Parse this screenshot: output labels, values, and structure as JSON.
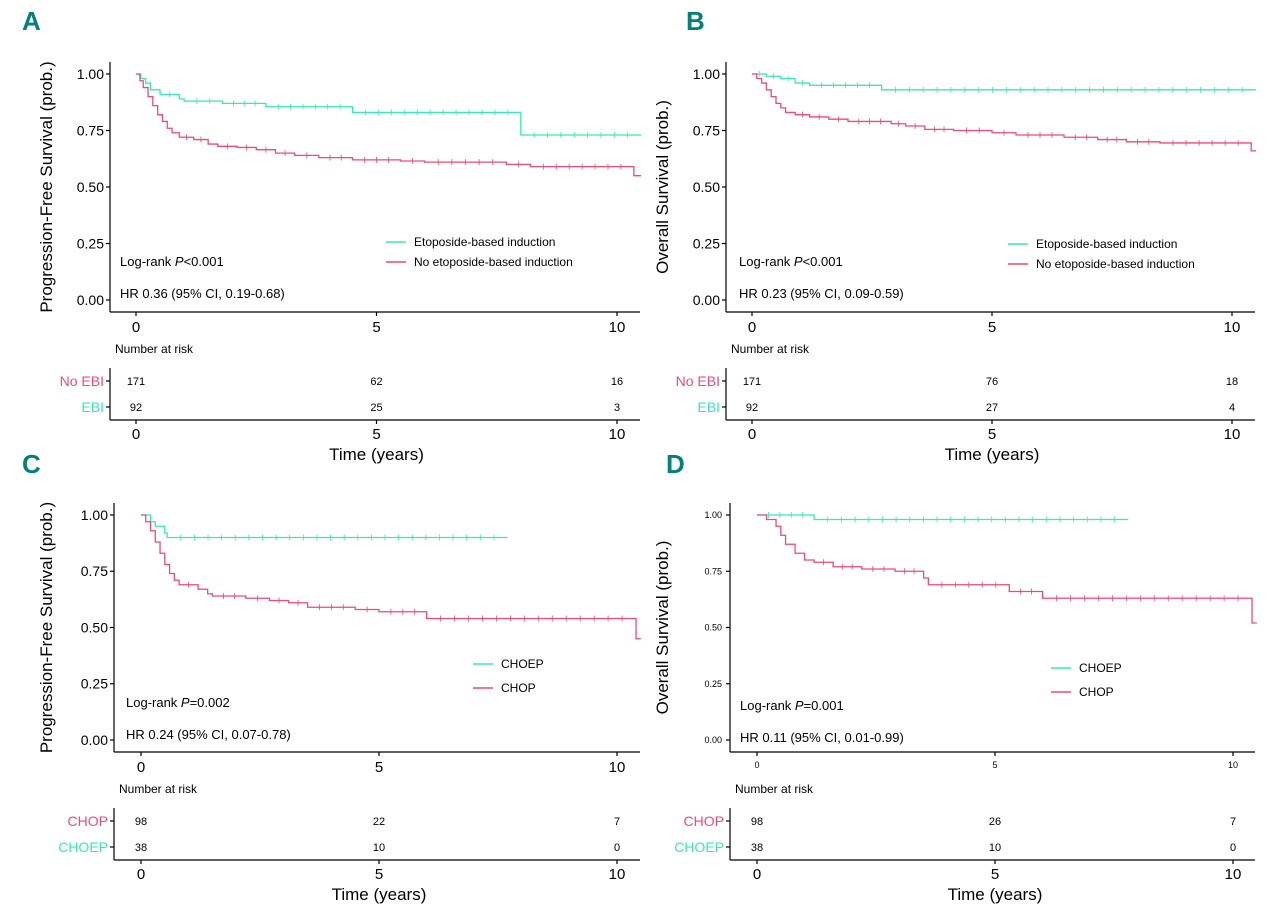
{
  "colors": {
    "teal": "#34eab5",
    "pink": "#eb4a7a",
    "label": "#00827a"
  },
  "chart_data": [
    {
      "panel": "A",
      "type": "line",
      "ylabel": "Progression-Free Survival (prob.)",
      "xlabel": "Time (years)",
      "ylim": [
        0,
        1
      ],
      "xlim": [
        0,
        10.5
      ],
      "y_ticks": [
        "0.00",
        "0.25",
        "0.50",
        "0.75",
        "1.00"
      ],
      "x_ticks": [
        "0",
        "5",
        "10"
      ],
      "logrank_prefix": "Log-rank ",
      "logrank_p": "P",
      "logrank_value": "<0.001",
      "hr_text": "HR 0.36 (95% CI, 0.19-0.68)",
      "series": [
        {
          "name": "Etoposide-based induction",
          "color": "#34eab5",
          "steps": [
            [
              0,
              1.0
            ],
            [
              0.1,
              0.98
            ],
            [
              0.2,
              0.96
            ],
            [
              0.3,
              0.93
            ],
            [
              0.5,
              0.91
            ],
            [
              0.9,
              0.89
            ],
            [
              1.0,
              0.88
            ],
            [
              1.8,
              0.87
            ],
            [
              2.7,
              0.855
            ],
            [
              4.5,
              0.83
            ],
            [
              8.0,
              0.73
            ],
            [
              10.5,
              0.73
            ]
          ]
        },
        {
          "name": "No etoposide-based induction",
          "color": "#eb4a7a",
          "steps": [
            [
              0,
              1.0
            ],
            [
              0.08,
              0.97
            ],
            [
              0.15,
              0.94
            ],
            [
              0.25,
              0.9
            ],
            [
              0.35,
              0.86
            ],
            [
              0.45,
              0.82
            ],
            [
              0.55,
              0.79
            ],
            [
              0.65,
              0.76
            ],
            [
              0.75,
              0.74
            ],
            [
              0.9,
              0.72
            ],
            [
              1.2,
              0.71
            ],
            [
              1.5,
              0.69
            ],
            [
              1.7,
              0.68
            ],
            [
              2.1,
              0.675
            ],
            [
              2.5,
              0.665
            ],
            [
              2.9,
              0.65
            ],
            [
              3.3,
              0.64
            ],
            [
              3.8,
              0.63
            ],
            [
              4.5,
              0.62
            ],
            [
              5.5,
              0.615
            ],
            [
              6.0,
              0.61
            ],
            [
              7.7,
              0.6
            ],
            [
              8.2,
              0.59
            ],
            [
              10.35,
              0.55
            ],
            [
              10.5,
              0.55
            ]
          ]
        }
      ],
      "risk_title": "Number at risk",
      "risk_rows": [
        {
          "label": "No EBI",
          "color": "#eb4a7a",
          "values": [
            "171",
            "62",
            "16"
          ]
        },
        {
          "label": "EBI",
          "color": "#34eab5",
          "values": [
            "92",
            "25",
            "3"
          ]
        }
      ]
    },
    {
      "panel": "B",
      "type": "line",
      "ylabel": "Overall Survival (prob.)",
      "xlabel": "Time (years)",
      "ylim": [
        0,
        1
      ],
      "xlim": [
        0,
        10.5
      ],
      "y_ticks": [
        "0.00",
        "0.25",
        "0.50",
        "0.75",
        "1.00"
      ],
      "x_ticks": [
        "0",
        "5",
        "10"
      ],
      "logrank_prefix": "Log-rank ",
      "logrank_p": "P",
      "logrank_value": "<0.001",
      "hr_text": "HR 0.23 (95% CI, 0.09-0.59)",
      "series": [
        {
          "name": "Etoposide-based induction",
          "color": "#34eab5",
          "steps": [
            [
              0,
              1.0
            ],
            [
              0.3,
              0.99
            ],
            [
              0.6,
              0.98
            ],
            [
              0.9,
              0.96
            ],
            [
              1.2,
              0.95
            ],
            [
              2.7,
              0.93
            ],
            [
              10.5,
              0.93
            ]
          ]
        },
        {
          "name": "No etoposide-based induction",
          "color": "#eb4a7a",
          "steps": [
            [
              0,
              1.0
            ],
            [
              0.1,
              0.98
            ],
            [
              0.2,
              0.96
            ],
            [
              0.3,
              0.93
            ],
            [
              0.4,
              0.9
            ],
            [
              0.5,
              0.87
            ],
            [
              0.6,
              0.85
            ],
            [
              0.7,
              0.83
            ],
            [
              0.9,
              0.82
            ],
            [
              1.2,
              0.81
            ],
            [
              1.6,
              0.8
            ],
            [
              2.0,
              0.79
            ],
            [
              2.9,
              0.78
            ],
            [
              3.2,
              0.77
            ],
            [
              3.6,
              0.755
            ],
            [
              4.2,
              0.75
            ],
            [
              5.0,
              0.74
            ],
            [
              5.5,
              0.73
            ],
            [
              6.5,
              0.72
            ],
            [
              7.2,
              0.71
            ],
            [
              7.8,
              0.7
            ],
            [
              8.5,
              0.695
            ],
            [
              10.4,
              0.66
            ],
            [
              10.5,
              0.66
            ]
          ]
        }
      ],
      "risk_title": "Number at risk",
      "risk_rows": [
        {
          "label": "No EBI",
          "color": "#eb4a7a",
          "values": [
            "171",
            "76",
            "18"
          ]
        },
        {
          "label": "EBI",
          "color": "#34eab5",
          "values": [
            "92",
            "27",
            "4"
          ]
        }
      ]
    },
    {
      "panel": "C",
      "type": "line",
      "ylabel": "Progression-Free Survival (prob.)",
      "xlabel": "Time (years)",
      "ylim": [
        0,
        1
      ],
      "xlim": [
        0,
        10.5
      ],
      "y_ticks": [
        "0.00",
        "0.25",
        "0.50",
        "0.75",
        "1.00"
      ],
      "x_ticks": [
        "0",
        "5",
        "10"
      ],
      "logrank_prefix": "Log-rank ",
      "logrank_p": "P",
      "logrank_value": "=0.002",
      "hr_text": "HR 0.24 (95% CI, 0.07-0.78)",
      "series": [
        {
          "name": "CHOEP",
          "color": "#34eab5",
          "steps": [
            [
              0,
              1.0
            ],
            [
              0.2,
              0.97
            ],
            [
              0.3,
              0.95
            ],
            [
              0.5,
              0.92
            ],
            [
              0.55,
              0.9
            ],
            [
              7.7,
              0.9
            ]
          ]
        },
        {
          "name": "CHOP",
          "color": "#eb4a7a",
          "steps": [
            [
              0,
              1.0
            ],
            [
              0.1,
              0.97
            ],
            [
              0.2,
              0.93
            ],
            [
              0.3,
              0.88
            ],
            [
              0.4,
              0.83
            ],
            [
              0.5,
              0.78
            ],
            [
              0.6,
              0.74
            ],
            [
              0.7,
              0.71
            ],
            [
              0.8,
              0.69
            ],
            [
              1.2,
              0.67
            ],
            [
              1.4,
              0.65
            ],
            [
              1.5,
              0.64
            ],
            [
              2.2,
              0.63
            ],
            [
              2.7,
              0.62
            ],
            [
              3.1,
              0.61
            ],
            [
              3.5,
              0.59
            ],
            [
              4.5,
              0.58
            ],
            [
              5.0,
              0.57
            ],
            [
              6.0,
              0.54
            ],
            [
              10.4,
              0.45
            ],
            [
              10.5,
              0.45
            ]
          ]
        }
      ],
      "risk_title": "Number at risk",
      "risk_rows": [
        {
          "label": "CHOP",
          "color": "#eb4a7a",
          "values": [
            "98",
            "22",
            "7"
          ]
        },
        {
          "label": "CHOEP",
          "color": "#34eab5",
          "values": [
            "38",
            "10",
            "0"
          ]
        }
      ]
    },
    {
      "panel": "D",
      "type": "line",
      "ylabel": "Overall Survival (prob.)",
      "xlabel": "Time (years)",
      "ylim": [
        0,
        1
      ],
      "xlim": [
        0,
        10.5
      ],
      "y_ticks": [
        "0.00",
        "0.25",
        "0.50",
        "0.75",
        "1.00"
      ],
      "x_ticks": [
        "0",
        "5",
        "10"
      ],
      "logrank_prefix": "Log-rank ",
      "logrank_p": "P",
      "logrank_value": "=0.001",
      "hr_text": "HR 0.11 (95% CI, 0.01-0.99)",
      "series": [
        {
          "name": "CHOEP",
          "color": "#34eab5",
          "steps": [
            [
              0,
              1.0
            ],
            [
              1.2,
              0.98
            ],
            [
              7.8,
              0.98
            ]
          ]
        },
        {
          "name": "CHOP",
          "color": "#eb4a7a",
          "steps": [
            [
              0,
              1.0
            ],
            [
              0.2,
              0.98
            ],
            [
              0.4,
              0.95
            ],
            [
              0.5,
              0.91
            ],
            [
              0.6,
              0.87
            ],
            [
              0.8,
              0.83
            ],
            [
              1.0,
              0.8
            ],
            [
              1.2,
              0.79
            ],
            [
              1.6,
              0.77
            ],
            [
              2.2,
              0.76
            ],
            [
              2.9,
              0.75
            ],
            [
              3.5,
              0.72
            ],
            [
              3.6,
              0.69
            ],
            [
              5.3,
              0.66
            ],
            [
              6.0,
              0.63
            ],
            [
              10.4,
              0.52
            ],
            [
              10.5,
              0.52
            ]
          ]
        }
      ],
      "risk_title": "Number at risk",
      "risk_rows": [
        {
          "label": "CHOP",
          "color": "#eb4a7a",
          "values": [
            "98",
            "26",
            "7"
          ]
        },
        {
          "label": "CHOEP",
          "color": "#34eab5",
          "values": [
            "38",
            "10",
            "0"
          ]
        }
      ]
    }
  ]
}
